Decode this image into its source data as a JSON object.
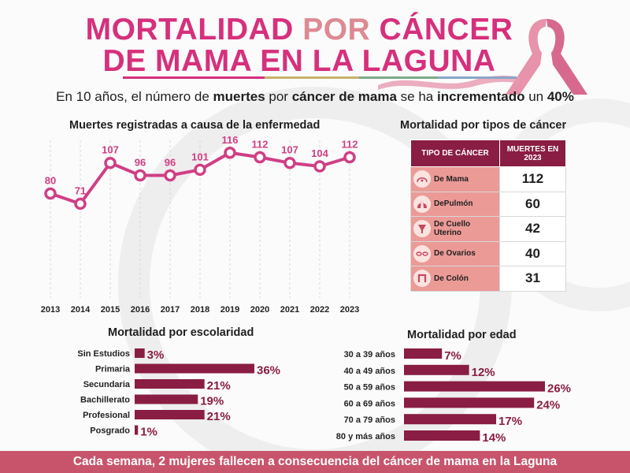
{
  "header": {
    "title_line1_a": "MORTALIDAD ",
    "title_line1_b": "POR",
    "title_line1_c": " CÁNCER",
    "title_line2": "DE MAMA EN LA LAGUNA",
    "sub_1": "En 10 años, el número de ",
    "sub_2": "muertes",
    "sub_3": " por ",
    "sub_4": "cáncer de mama",
    "sub_5": " se ha ",
    "sub_6": "incrementado",
    "sub_7": " un ",
    "sub_8": "40%"
  },
  "colors": {
    "primary_pink": "#d6307c",
    "accent_rose": "#dd8a92",
    "line": "#cf3f85",
    "bar": "#8a1d43",
    "table_header": "#8a1d43",
    "table_cell": "#eb9a96",
    "footer": "#c8546c"
  },
  "icons": [
    "ribbon-icon",
    "breast-icon",
    "lungs-icon",
    "uterus-icon",
    "ovaries-icon",
    "colon-icon"
  ],
  "chart_data": [
    {
      "type": "line",
      "title": "Muertes registradas a causa de la enfermedad",
      "x": [
        "2013",
        "2014",
        "2015",
        "2016",
        "2017",
        "2018",
        "2019",
        "2020",
        "2021",
        "2022",
        "2023"
      ],
      "series": [
        {
          "values": [
            80,
            71,
            107,
            96,
            96,
            101,
            116,
            112,
            107,
            104,
            112
          ]
        }
      ],
      "ylim": [
        40,
        120
      ],
      "grid": "vertical dashed"
    },
    {
      "type": "table",
      "title": "Mortalidad por tipos de cáncer",
      "columns": [
        "TIPO DE CÁNCER",
        "MUERTES EN 2023"
      ],
      "rows": [
        [
          "De Mama",
          "112"
        ],
        [
          "DePulmón",
          "60"
        ],
        [
          "De Cuello Uterino",
          "42"
        ],
        [
          "De Ovarios",
          "40"
        ],
        [
          "De Colón",
          "31"
        ]
      ]
    },
    {
      "type": "bar",
      "orientation": "horizontal",
      "title": "Mortalidad por escolaridad",
      "categories": [
        "Sin Estudios",
        "Primaria",
        "Secundaria",
        "Bachillerato",
        "Profesional",
        "Posgrado"
      ],
      "values": [
        3,
        36,
        21,
        19,
        21,
        1
      ],
      "labels": [
        "3%",
        "36%",
        "21%",
        "19%",
        "21%",
        "1%"
      ],
      "xlim": [
        0,
        36
      ]
    },
    {
      "type": "bar",
      "orientation": "horizontal",
      "title": "Mortalidad por edad",
      "categories": [
        "30 a 39 años",
        "40 a 49 años",
        "50 a 59 años",
        "60 a 69 años",
        "70 a 79 años",
        "80 y más años"
      ],
      "values": [
        7,
        12,
        26,
        24,
        17,
        14
      ],
      "labels": [
        "7%",
        "12%",
        "26%",
        "24%",
        "17%",
        "14%"
      ],
      "xlim": [
        0,
        26
      ]
    }
  ],
  "footer": {
    "text": "Cada semana, 2 mujeres fallecen a consecuencia del cáncer de mama en la Laguna"
  }
}
